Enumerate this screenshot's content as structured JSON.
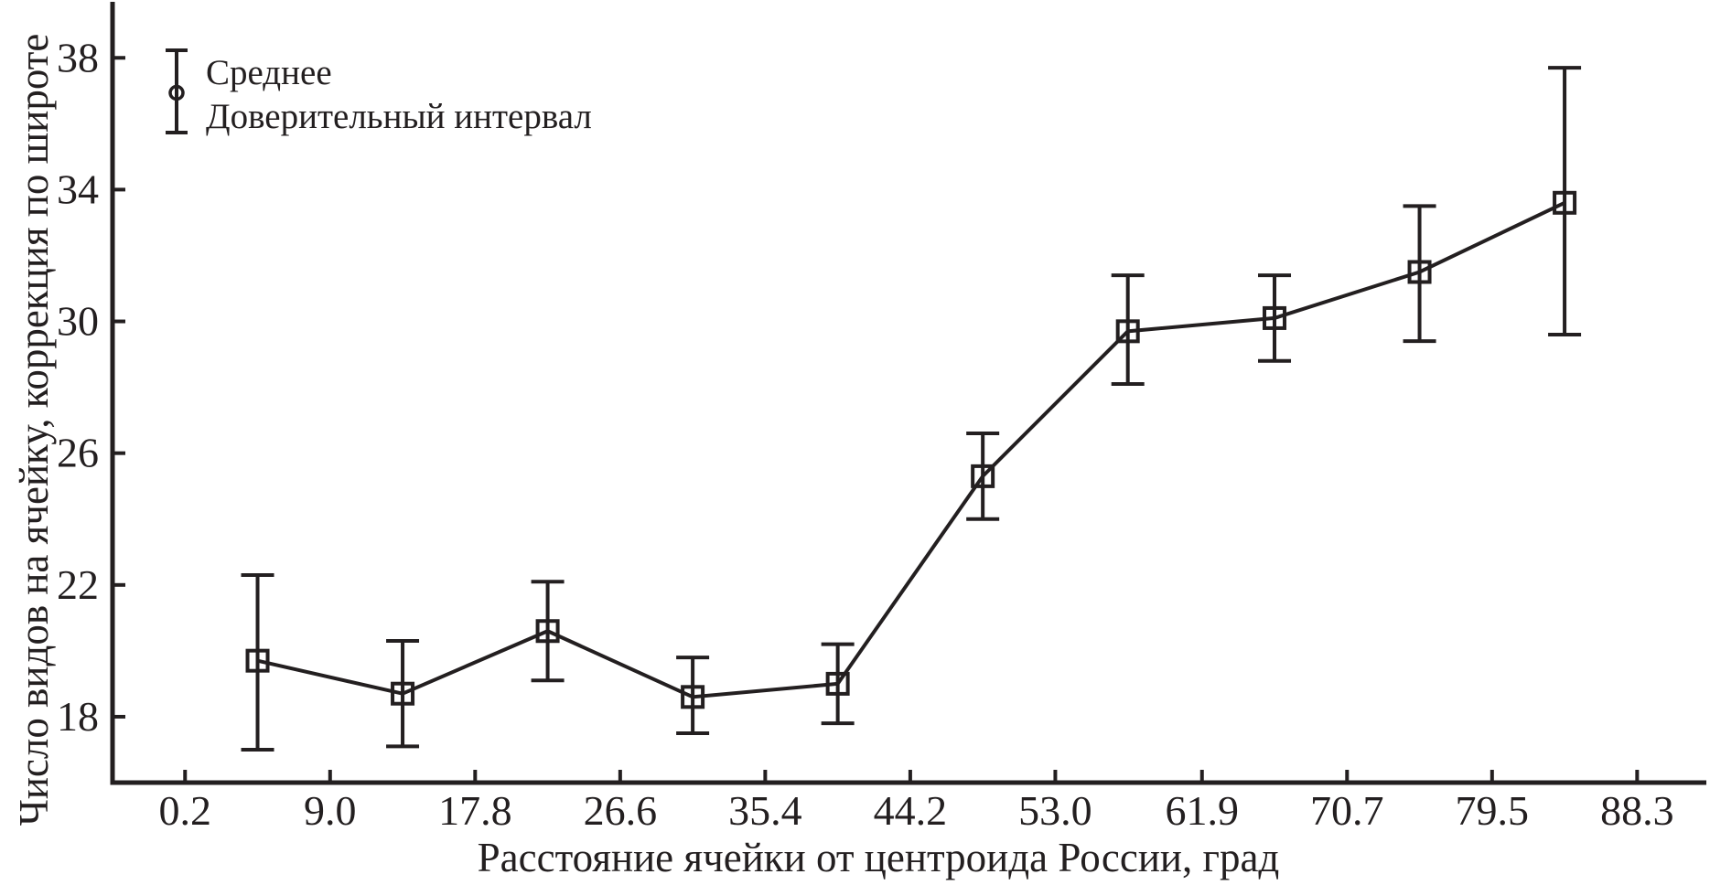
{
  "figure": {
    "background": "#ffffff",
    "ink_color": "#231f20"
  },
  "legend": {
    "mean_label": "Среднее",
    "ci_label": "Доверительный интервал",
    "position": "top-left",
    "symbol": "circle-with-error-bar"
  },
  "chart_data": {
    "type": "line",
    "title": "",
    "xlabel": "Расстояние ячейки от центроида России, град",
    "ylabel": "Число видов на ячейку, коррекция по широте",
    "x_tick_labels": [
      "0.2",
      "9.0",
      "17.8",
      "26.6",
      "35.4",
      "44.2",
      "53.0",
      "61.9",
      "70.7",
      "79.5",
      "88.3"
    ],
    "x_tick_values": [
      0.2,
      9.0,
      17.8,
      26.6,
      35.4,
      44.2,
      53.0,
      61.9,
      70.7,
      79.5,
      88.3
    ],
    "y_tick_labels": [
      "18",
      "22",
      "26",
      "30",
      "34",
      "38"
    ],
    "y_tick_values": [
      18,
      22,
      26,
      30,
      34,
      38
    ],
    "xlim": [
      -4.2,
      92.5
    ],
    "ylim": [
      16.0,
      39.7
    ],
    "grid": false,
    "legend_position": "top-left",
    "marker": "open-square",
    "series": [
      {
        "name": "Среднее",
        "x": [
          4.6,
          13.4,
          22.2,
          31.0,
          39.8,
          48.6,
          57.4,
          66.3,
          75.1,
          83.9
        ],
        "y": [
          19.7,
          18.7,
          20.6,
          18.6,
          19.0,
          25.3,
          29.7,
          30.1,
          31.5,
          33.6
        ],
        "ci_low": [
          17.0,
          17.1,
          19.1,
          17.5,
          17.8,
          24.0,
          28.1,
          28.8,
          29.4,
          29.6
        ],
        "ci_high": [
          22.3,
          20.3,
          22.1,
          19.8,
          20.2,
          26.6,
          31.4,
          31.4,
          33.5,
          37.7
        ]
      }
    ]
  }
}
